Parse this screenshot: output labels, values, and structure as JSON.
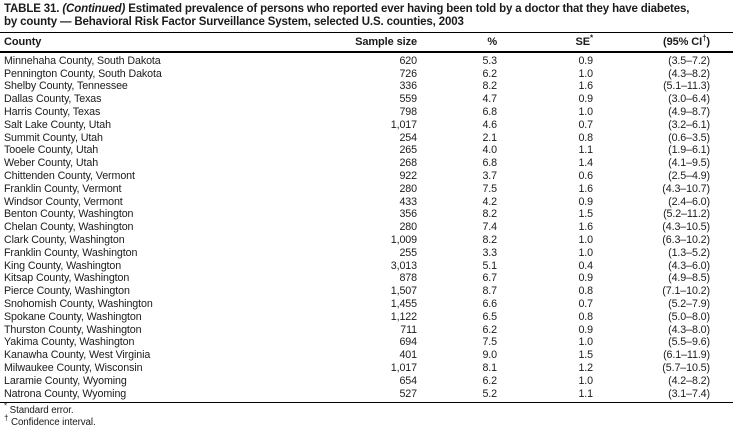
{
  "title": {
    "prefix": "TABLE 31.",
    "continued": "(Continued)",
    "line1_rest": "Estimated prevalence of persons who reported ever having been told by a doctor that they have diabetes,",
    "line2": "by county — Behavioral Risk Factor Surveillance System, selected U.S. counties, 2003"
  },
  "header": {
    "county": "County",
    "sample_size": "Sample size",
    "percent": "%",
    "se": "SE",
    "se_sup": "*",
    "ci_open": "(95% CI",
    "ci_sup": "†",
    "ci_close": ")"
  },
  "table": {
    "rows": [
      {
        "county": "Minnehaha County, South Dakota",
        "sample_size": "620",
        "pct": "5.3",
        "se": "0.9",
        "ci": "(3.5–7.2)"
      },
      {
        "county": "Pennington County, South Dakota",
        "sample_size": "726",
        "pct": "6.2",
        "se": "1.0",
        "ci": "(4.3–8.2)"
      },
      {
        "county": "Shelby County, Tennessee",
        "sample_size": "336",
        "pct": "8.2",
        "se": "1.6",
        "ci": "(5.1–11.3)"
      },
      {
        "county": "Dallas County, Texas",
        "sample_size": "559",
        "pct": "4.7",
        "se": "0.9",
        "ci": "(3.0–6.4)"
      },
      {
        "county": "Harris County, Texas",
        "sample_size": "798",
        "pct": "6.8",
        "se": "1.0",
        "ci": "(4.9–8.7)"
      },
      {
        "county": "Salt Lake County, Utah",
        "sample_size": "1,017",
        "pct": "4.6",
        "se": "0.7",
        "ci": "(3.2–6.1)"
      },
      {
        "county": "Summit County, Utah",
        "sample_size": "254",
        "pct": "2.1",
        "se": "0.8",
        "ci": "(0.6–3.5)"
      },
      {
        "county": "Tooele County, Utah",
        "sample_size": "265",
        "pct": "4.0",
        "se": "1.1",
        "ci": "(1.9–6.1)"
      },
      {
        "county": "Weber County, Utah",
        "sample_size": "268",
        "pct": "6.8",
        "se": "1.4",
        "ci": "(4.1–9.5)"
      },
      {
        "county": "Chittenden County, Vermont",
        "sample_size": "922",
        "pct": "3.7",
        "se": "0.6",
        "ci": "(2.5–4.9)"
      },
      {
        "county": "Franklin County, Vermont",
        "sample_size": "280",
        "pct": "7.5",
        "se": "1.6",
        "ci": "(4.3–10.7)"
      },
      {
        "county": "Windsor County, Vermont",
        "sample_size": "433",
        "pct": "4.2",
        "se": "0.9",
        "ci": "(2.4–6.0)"
      },
      {
        "county": "Benton County, Washington",
        "sample_size": "356",
        "pct": "8.2",
        "se": "1.5",
        "ci": "(5.2–11.2)"
      },
      {
        "county": "Chelan County, Washington",
        "sample_size": "280",
        "pct": "7.4",
        "se": "1.6",
        "ci": "(4.3–10.5)"
      },
      {
        "county": "Clark County, Washington",
        "sample_size": "1,009",
        "pct": "8.2",
        "se": "1.0",
        "ci": "(6.3–10.2)"
      },
      {
        "county": "Franklin County, Washington",
        "sample_size": "255",
        "pct": "3.3",
        "se": "1.0",
        "ci": "(1.3–5.2)"
      },
      {
        "county": "King County, Washington",
        "sample_size": "3,013",
        "pct": "5.1",
        "se": "0.4",
        "ci": "(4.3–6.0)"
      },
      {
        "county": "Kitsap County, Washington",
        "sample_size": "878",
        "pct": "6.7",
        "se": "0.9",
        "ci": "(4.9–8.5)"
      },
      {
        "county": "Pierce County, Washington",
        "sample_size": "1,507",
        "pct": "8.7",
        "se": "0.8",
        "ci": "(7.1–10.2)"
      },
      {
        "county": "Snohomish County, Washington",
        "sample_size": "1,455",
        "pct": "6.6",
        "se": "0.7",
        "ci": "(5.2–7.9)"
      },
      {
        "county": "Spokane County, Washington",
        "sample_size": "1,122",
        "pct": "6.5",
        "se": "0.8",
        "ci": "(5.0–8.0)"
      },
      {
        "county": "Thurston County, Washington",
        "sample_size": "711",
        "pct": "6.2",
        "se": "0.9",
        "ci": "(4.3–8.0)"
      },
      {
        "county": "Yakima County, Washington",
        "sample_size": "694",
        "pct": "7.5",
        "se": "1.0",
        "ci": "(5.5–9.6)"
      },
      {
        "county": "Kanawha County, West Virginia",
        "sample_size": "401",
        "pct": "9.0",
        "se": "1.5",
        "ci": "(6.1–11.9)"
      },
      {
        "county": "Milwaukee County, Wisconsin",
        "sample_size": "1,017",
        "pct": "8.1",
        "se": "1.2",
        "ci": "(5.7–10.5)"
      },
      {
        "county": "Laramie County, Wyoming",
        "sample_size": "654",
        "pct": "6.2",
        "se": "1.0",
        "ci": "(4.2–8.2)"
      },
      {
        "county": "Natrona County, Wyoming",
        "sample_size": "527",
        "pct": "5.2",
        "se": "1.1",
        "ci": "(3.1–7.4)"
      }
    ]
  },
  "footnotes": [
    {
      "marker": "*",
      "text": "Standard error."
    },
    {
      "marker": "†",
      "text": "Confidence interval."
    }
  ],
  "colors": {
    "text": "#1b1b1b",
    "rule": "#000000",
    "background": "#ffffff"
  }
}
